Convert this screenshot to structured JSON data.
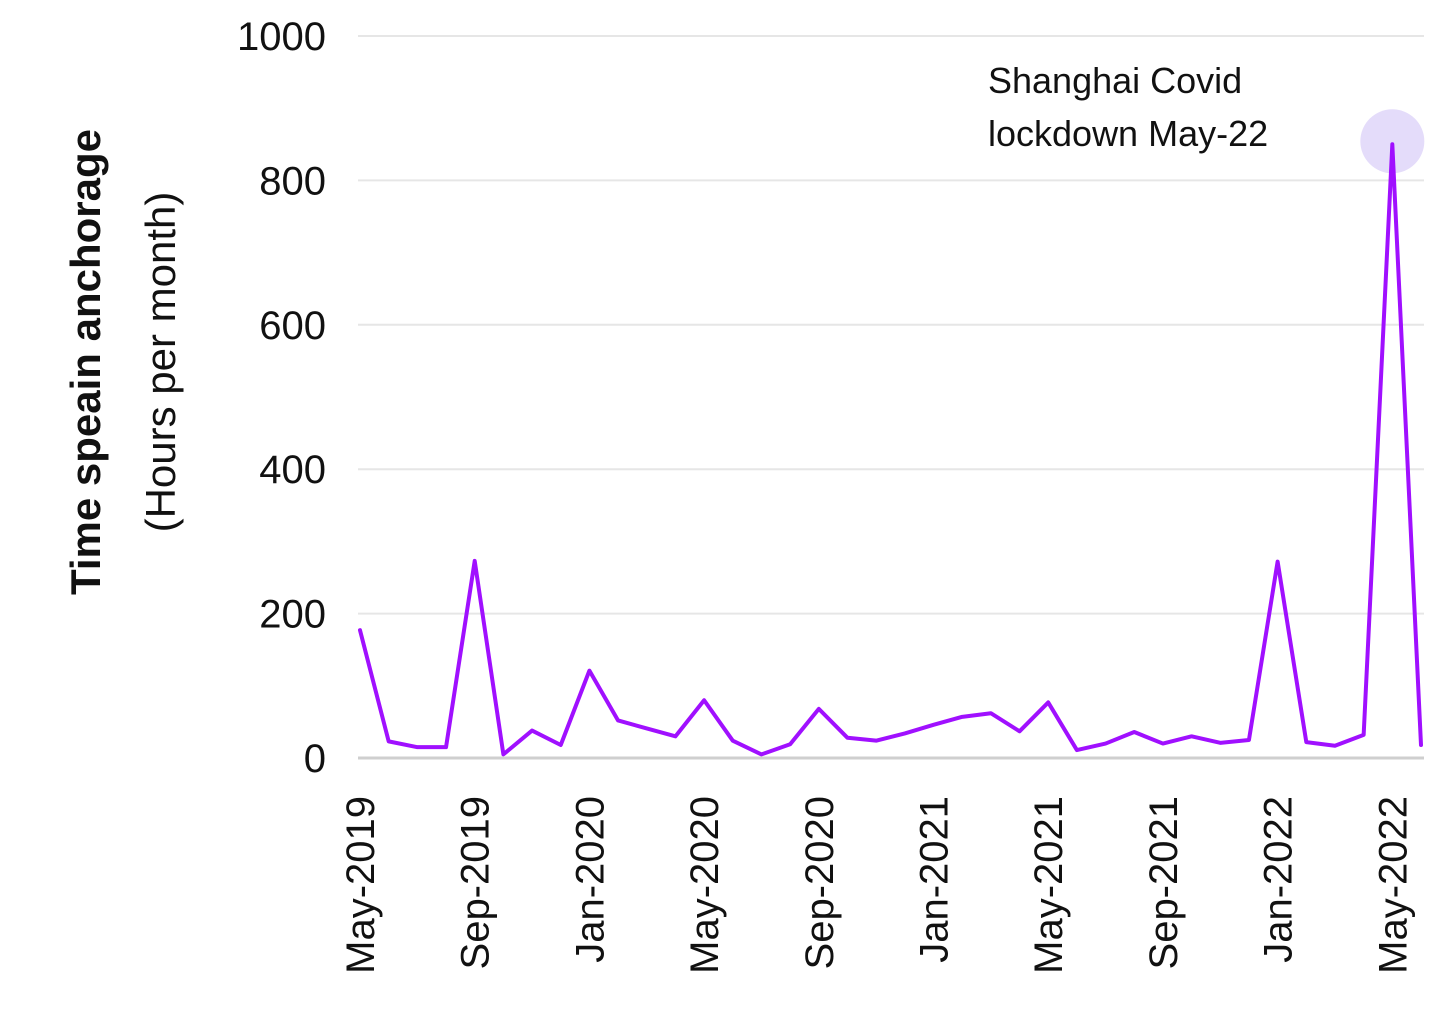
{
  "chart_data": {
    "type": "line",
    "ylabel": "Time speain anchorage",
    "ylabel_unit": "(Hours per month)",
    "xlabel": "",
    "ylim": [
      0,
      1000
    ],
    "yticks": [
      "0",
      "200",
      "400",
      "600",
      "800",
      "1000"
    ],
    "grid": true,
    "line_color": "#a010ff",
    "highlight_color": "#e4dcfa",
    "x_tick_labels": [
      "May-2019",
      "Sep-2019",
      "Jan-2020",
      "May-2020",
      "Sep-2020",
      "Jan-2021",
      "May-2021",
      "Sep-2021",
      "Jan-2022",
      "May-2022"
    ],
    "x": [
      "May-2019",
      "Jun-2019",
      "Jul-2019",
      "Aug-2019",
      "Sep-2019",
      "Oct-2019",
      "Nov-2019",
      "Dec-2019",
      "Jan-2020",
      "Feb-2020",
      "Mar-2020",
      "Apr-2020",
      "May-2020",
      "Jun-2020",
      "Jul-2020",
      "Aug-2020",
      "Sep-2020",
      "Oct-2020",
      "Nov-2020",
      "Dec-2020",
      "Jan-2021",
      "Feb-2021",
      "Mar-2021",
      "Apr-2021",
      "May-2021",
      "Jun-2021",
      "Jul-2021",
      "Aug-2021",
      "Sep-2021",
      "Oct-2021",
      "Nov-2021",
      "Dec-2021",
      "Jan-2022",
      "Feb-2022",
      "Mar-2022",
      "Apr-2022",
      "May-2022",
      "Jun-2022"
    ],
    "series": [
      {
        "values": [
          177,
          23,
          15,
          15,
          273,
          5,
          38,
          18,
          121,
          52,
          41,
          30,
          80,
          24,
          5,
          19,
          68,
          28,
          24,
          34,
          46,
          57,
          62,
          37,
          77,
          11,
          20,
          36,
          20,
          30,
          21,
          25,
          272,
          22,
          17,
          32,
          850,
          18
        ]
      }
    ],
    "annotations": [
      {
        "text_line1": "Shanghai Covid",
        "text_line2": "lockdown May-22",
        "x": "May-2022",
        "y": 850
      }
    ]
  }
}
